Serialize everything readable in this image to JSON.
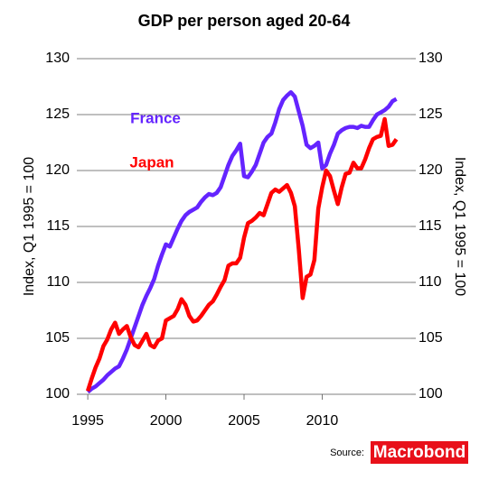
{
  "chart_data": {
    "type": "line",
    "title": "GDP per person aged 20-64",
    "y_label": "Index, Q1 1995 = 100",
    "y2_label": "Index, Q1 1995 = 100",
    "source": "Source:",
    "source_logo": "Macrobond",
    "x": [
      1995,
      1995.25,
      1995.5,
      1995.75,
      1996,
      1996.25,
      1996.5,
      1996.75,
      1997,
      1997.25,
      1997.5,
      1997.75,
      1998,
      1998.25,
      1998.5,
      1998.75,
      1999,
      1999.25,
      1999.5,
      1999.75,
      2000,
      2000.25,
      2000.5,
      2000.75,
      2001,
      2001.25,
      2001.5,
      2001.75,
      2002,
      2002.25,
      2002.5,
      2002.75,
      2003,
      2003.25,
      2003.5,
      2003.75,
      2004,
      2004.25,
      2004.5,
      2004.75,
      2005,
      2005.25,
      2005.5,
      2005.75,
      2006,
      2006.25,
      2006.5,
      2006.75,
      2007,
      2007.25,
      2007.5,
      2007.75,
      2008,
      2008.25,
      2008.5,
      2008.75,
      2009,
      2009.25,
      2009.5,
      2009.75,
      2010,
      2010.25,
      2010.5,
      2010.75,
      2011,
      2011.25,
      2011.5,
      2011.75,
      2012,
      2012.25,
      2012.5,
      2012.75,
      2013,
      2013.25,
      2013.5,
      2013.75,
      2014,
      2014.25,
      2014.5,
      2014.75
    ],
    "series": [
      {
        "name": "France",
        "color": "#6424ff",
        "values": [
          100.2,
          100.5,
          100.7,
          101.0,
          101.3,
          101.7,
          102.0,
          102.3,
          102.5,
          103.2,
          104.0,
          105.0,
          106.0,
          107.0,
          108.0,
          108.8,
          109.5,
          110.3,
          111.5,
          112.5,
          113.4,
          113.2,
          114.0,
          114.8,
          115.5,
          116.0,
          116.3,
          116.5,
          116.7,
          117.2,
          117.6,
          117.9,
          117.8,
          118.0,
          118.5,
          119.5,
          120.5,
          121.3,
          121.8,
          122.4,
          119.5,
          119.4,
          119.9,
          120.5,
          121.5,
          122.5,
          123.0,
          123.3,
          124.3,
          125.5,
          126.3,
          126.7,
          127.0,
          126.6,
          125.3,
          124.0,
          122.3,
          122.0,
          122.2,
          122.5,
          120.2,
          120.5,
          121.5,
          122.3,
          123.3,
          123.6,
          123.8,
          123.9,
          123.9,
          123.8,
          124.0,
          123.9,
          123.9,
          124.5,
          125.0,
          125.2,
          125.4,
          125.7,
          126.2,
          126.4
        ]
      },
      {
        "name": "Japan",
        "color": "#ff0000",
        "values": [
          100.3,
          101.4,
          102.4,
          103.2,
          104.3,
          104.9,
          105.8,
          106.4,
          105.4,
          105.8,
          106.1,
          105.1,
          104.4,
          104.2,
          104.8,
          105.4,
          104.4,
          104.2,
          104.8,
          105.0,
          106.6,
          106.8,
          107.0,
          107.6,
          108.5,
          108.0,
          107.0,
          106.5,
          106.6,
          107.0,
          107.5,
          108.0,
          108.3,
          108.9,
          109.6,
          110.2,
          111.5,
          111.7,
          111.7,
          112.2,
          114.0,
          115.3,
          115.5,
          115.8,
          116.2,
          116.0,
          117.0,
          118.0,
          118.3,
          118.1,
          118.4,
          118.7,
          118.0,
          116.8,
          113.0,
          108.6,
          110.5,
          110.7,
          112.0,
          116.6,
          118.5,
          120.0,
          119.5,
          118.2,
          117.0,
          118.5,
          119.7,
          119.8,
          120.7,
          120.2,
          120.2,
          121.0,
          122.0,
          122.8,
          123.0,
          123.1,
          124.6,
          122.2,
          122.3,
          122.8
        ]
      }
    ],
    "xlim": [
      1994.3,
      2015.7
    ],
    "xticks": [
      1995,
      2000,
      2005,
      2010
    ],
    "ylim": [
      100,
      130
    ],
    "yticks": [
      100,
      105,
      110,
      115,
      120,
      125,
      130
    ],
    "y2lim": [
      100,
      130
    ],
    "y2ticks": [
      100,
      105,
      110,
      115,
      120,
      125,
      130
    ],
    "grid": true
  }
}
